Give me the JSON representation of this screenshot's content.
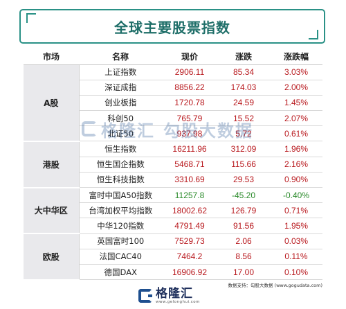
{
  "title": "全球主要股票指数",
  "headers": [
    "市场",
    "名称",
    "现价",
    "涨跌",
    "涨跌幅"
  ],
  "groups": [
    {
      "market": "A股",
      "rows": [
        {
          "name": "上证指数",
          "price": "2906.11",
          "change": "85.34",
          "pct": "3.03%",
          "dir": "up"
        },
        {
          "name": "深证成指",
          "price": "8856.22",
          "change": "174.03",
          "pct": "2.00%",
          "dir": "up"
        },
        {
          "name": "创业板指",
          "price": "1720.78",
          "change": "24.59",
          "pct": "1.45%",
          "dir": "up"
        },
        {
          "name": "科创50",
          "price": "765.79",
          "change": "15.52",
          "pct": "2.07%",
          "dir": "up"
        },
        {
          "name": "北证50",
          "price": "937.98",
          "change": "5.72",
          "pct": "0.61%",
          "dir": "up"
        }
      ]
    },
    {
      "market": "港股",
      "rows": [
        {
          "name": "恒生指数",
          "price": "16211.96",
          "change": "312.09",
          "pct": "1.96%",
          "dir": "up"
        },
        {
          "name": "恒生国企指数",
          "price": "5468.71",
          "change": "115.66",
          "pct": "2.16%",
          "dir": "up"
        },
        {
          "name": "恒生科技指数",
          "price": "3310.69",
          "change": "29.53",
          "pct": "0.90%",
          "dir": "up"
        }
      ]
    },
    {
      "market": "大中华区",
      "rows": [
        {
          "name": "富时中国A50指数",
          "price": "11257.8",
          "change": "-45.20",
          "pct": "-0.40%",
          "dir": "down"
        },
        {
          "name": "台湾加权平均指数",
          "price": "18002.62",
          "change": "126.79",
          "pct": "0.71%",
          "dir": "up"
        },
        {
          "name": "中华120指数",
          "price": "4791.49",
          "change": "91.56",
          "pct": "1.95%",
          "dir": "up"
        }
      ]
    },
    {
      "market": "欧股",
      "rows": [
        {
          "name": "英国富时100",
          "price": "7529.73",
          "change": "2.06",
          "pct": "0.03%",
          "dir": "up"
        },
        {
          "name": "法国CAC40",
          "price": "7464.2",
          "change": "8.56",
          "pct": "0.11%",
          "dir": "up"
        },
        {
          "name": "德国DAX",
          "price": "16906.92",
          "change": "17.00",
          "pct": "0.10%",
          "dir": "up"
        }
      ]
    }
  ],
  "watermark": {
    "brand": "格隆汇",
    "brand_url": "www.gelonghui.com",
    "secondary": "勾股大数据",
    "secondary_url": "www.gogudata.com"
  },
  "source": "数据支持：勾股大数据 (www.gogudata.com)",
  "logo": {
    "name": "格隆汇",
    "url": "www.gelonghui.com"
  },
  "colors": {
    "up": "#b8181d",
    "down": "#2a8a2a",
    "accent": "#2a9186"
  }
}
